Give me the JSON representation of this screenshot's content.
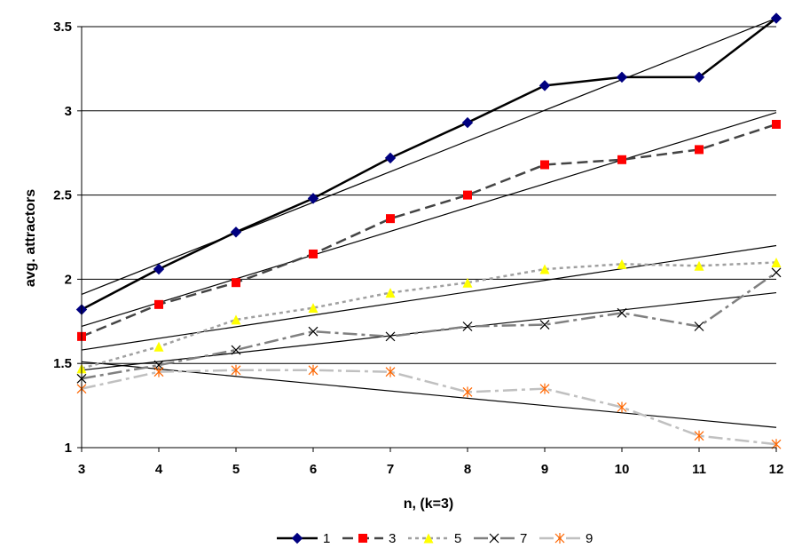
{
  "chart_data": {
    "type": "line",
    "xlabel": "n, (k=3)",
    "ylabel": "avg. attractors",
    "x": [
      3,
      4,
      5,
      6,
      7,
      8,
      9,
      10,
      11,
      12
    ],
    "xlim": [
      3,
      12
    ],
    "ylim": [
      1,
      3.5
    ],
    "y_ticks": [
      1,
      1.5,
      2,
      2.5,
      3,
      3.5
    ],
    "y_tick_labels": [
      "1",
      "1.5",
      "2",
      "2.5",
      "3",
      "3.5"
    ],
    "grid": "horizontal",
    "legend_position": "bottom",
    "series": [
      {
        "name": "1",
        "values": [
          1.82,
          2.06,
          2.28,
          2.48,
          2.72,
          2.93,
          3.15,
          3.2,
          3.2,
          3.55
        ],
        "color": "#000080",
        "line_color": "#000000",
        "dash": "",
        "line_width": 2.5,
        "marker": "diamond",
        "trend": [
          1.91,
          3.55
        ]
      },
      {
        "name": "3",
        "values": [
          1.66,
          1.85,
          1.98,
          2.15,
          2.36,
          2.5,
          2.68,
          2.71,
          2.77,
          2.92
        ],
        "color": "#ff0000",
        "line_color": "#444444",
        "dash": "12,6",
        "line_width": 2.5,
        "marker": "square",
        "trend": [
          1.72,
          2.99
        ]
      },
      {
        "name": "5",
        "values": [
          1.47,
          1.6,
          1.76,
          1.83,
          1.92,
          1.98,
          2.06,
          2.09,
          2.08,
          2.1
        ],
        "color": "#ffff00",
        "line_color": "#a0a0a0",
        "dash": "4,4",
        "line_width": 2.5,
        "marker": "triangle",
        "trend": [
          1.58,
          2.2
        ]
      },
      {
        "name": "7",
        "values": [
          1.41,
          1.49,
          1.58,
          1.69,
          1.66,
          1.72,
          1.73,
          1.8,
          1.72,
          2.04
        ],
        "color": "#000000",
        "line_color": "#808080",
        "dash": "16,5,4,5",
        "line_width": 2.5,
        "marker": "x",
        "trend": [
          1.46,
          1.92
        ]
      },
      {
        "name": "9",
        "values": [
          1.35,
          1.45,
          1.46,
          1.46,
          1.45,
          1.33,
          1.35,
          1.24,
          1.07,
          1.02
        ],
        "color": "#ff6600",
        "line_color": "#c0c0c0",
        "dash": "16,5,4,5",
        "line_width": 2.5,
        "marker": "star",
        "trend": [
          1.51,
          1.12
        ]
      }
    ]
  }
}
